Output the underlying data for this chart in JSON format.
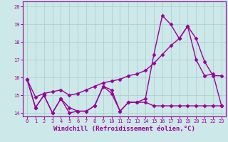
{
  "title": "",
  "xlabel": "Windchill (Refroidissement éolien,°C)",
  "ylabel": "",
  "background_color": "#cce8e8",
  "grid_color": "#aacccc",
  "line_color": "#990099",
  "xlim": [
    -0.5,
    23.5
  ],
  "ylim": [
    13.8,
    20.3
  ],
  "yticks": [
    14,
    15,
    16,
    17,
    18,
    19,
    20
  ],
  "xticks": [
    0,
    1,
    2,
    3,
    4,
    5,
    6,
    7,
    8,
    9,
    10,
    11,
    12,
    13,
    14,
    15,
    16,
    17,
    18,
    19,
    20,
    21,
    22,
    23
  ],
  "line1_y": [
    15.9,
    14.3,
    15.0,
    14.0,
    14.8,
    14.3,
    14.1,
    14.1,
    14.4,
    15.5,
    15.1,
    14.1,
    14.6,
    14.6,
    14.8,
    17.3,
    19.5,
    19.0,
    18.2,
    18.9,
    17.0,
    16.1,
    16.2,
    14.4
  ],
  "line2_y": [
    15.9,
    14.9,
    15.1,
    15.2,
    15.3,
    15.0,
    15.1,
    15.3,
    15.5,
    15.7,
    15.8,
    15.9,
    16.1,
    16.2,
    16.4,
    16.8,
    17.3,
    17.8,
    18.2,
    18.9,
    18.2,
    16.9,
    16.1,
    16.1
  ],
  "line3_y": [
    15.9,
    14.3,
    15.0,
    14.0,
    14.8,
    14.0,
    14.1,
    14.1,
    14.4,
    15.5,
    15.3,
    14.1,
    14.6,
    14.6,
    14.6,
    14.4,
    14.4,
    14.4,
    14.4,
    14.4,
    14.4,
    14.4,
    14.4,
    14.4
  ],
  "marker": "D",
  "markersize": 2.5,
  "linewidth": 1.0,
  "tick_fontsize": 5.0,
  "xlabel_fontsize": 6.5
}
